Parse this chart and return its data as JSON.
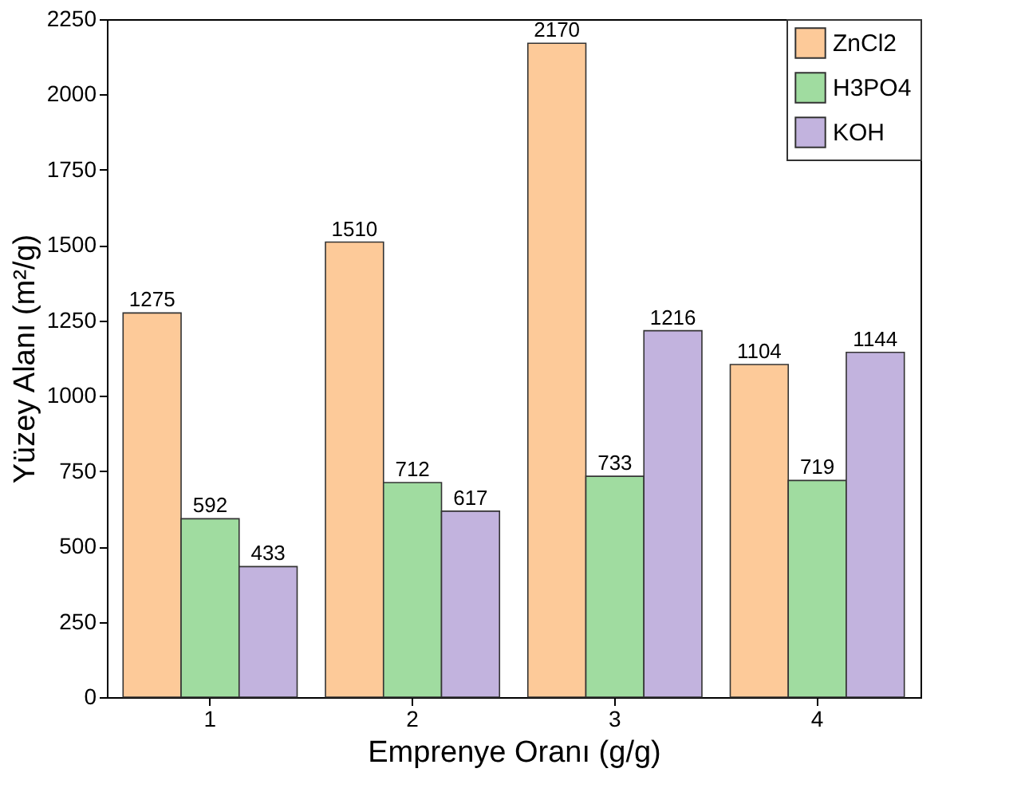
{
  "chart_data": {
    "type": "bar",
    "xlabel": "Emprenye Oranı (g/g)",
    "ylabel": "Yüzey Alanı (m²/g)",
    "categories": [
      "1",
      "2",
      "3",
      "4"
    ],
    "series": [
      {
        "name": "ZnCl2",
        "color": "#fdca99",
        "values": [
          1275,
          1510,
          2170,
          1104
        ]
      },
      {
        "name": "H3PO4",
        "color": "#a0dca0",
        "values": [
          592,
          712,
          733,
          719
        ]
      },
      {
        "name": "KOH",
        "color": "#c2b3de",
        "values": [
          433,
          617,
          1216,
          1144
        ]
      }
    ],
    "ylim": [
      0,
      2250
    ],
    "yticks": [
      0,
      250,
      500,
      750,
      1000,
      1250,
      1500,
      1750,
      2000,
      2250
    ],
    "data_labels": true,
    "legend": "top right",
    "grid": false
  }
}
